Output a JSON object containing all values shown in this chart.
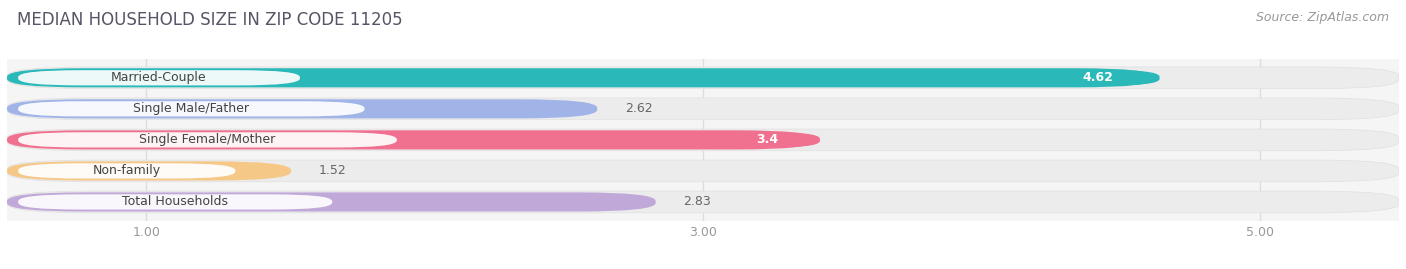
{
  "title": "MEDIAN HOUSEHOLD SIZE IN ZIP CODE 11205",
  "source": "Source: ZipAtlas.com",
  "categories": [
    "Married-Couple",
    "Single Male/Father",
    "Single Female/Mother",
    "Non-family",
    "Total Households"
  ],
  "values": [
    4.62,
    2.62,
    3.4,
    1.52,
    2.83
  ],
  "colors": [
    "#2ab8b8",
    "#a0b4e8",
    "#f07090",
    "#f5c888",
    "#c0a8d8"
  ],
  "value_label_colors": [
    "#ffffff",
    "#888888",
    "#ffffff",
    "#888888",
    "#888888"
  ],
  "value_bg_colors": [
    "#2ab8b8",
    "none",
    "#f07090",
    "none",
    "none"
  ],
  "bar_bg_color": "#ececec",
  "xlim_min": 0.5,
  "xlim_max": 5.5,
  "xticks": [
    1.0,
    3.0,
    5.0
  ],
  "title_fontsize": 12,
  "source_fontsize": 9,
  "label_fontsize": 9,
  "value_fontsize": 9,
  "bar_height": 0.7,
  "background_color": "#ffffff",
  "plot_bg_color": "#f5f5f5",
  "grid_color": "#dddddd",
  "label_bg_color": "#ffffff"
}
